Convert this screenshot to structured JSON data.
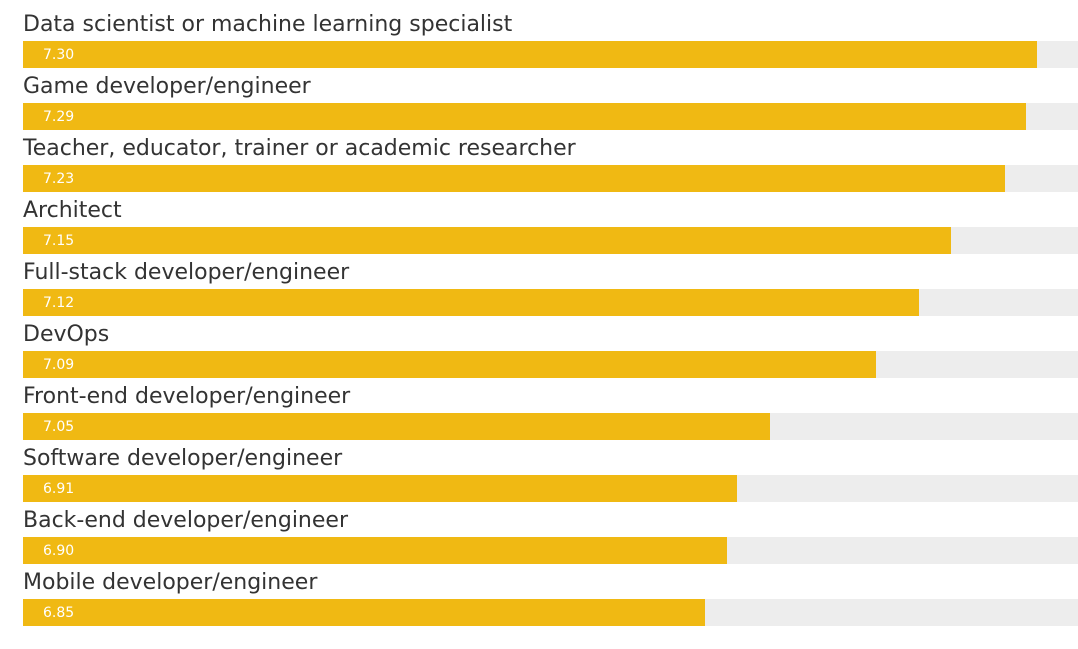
{
  "chart_data": {
    "type": "bar",
    "orientation": "horizontal",
    "title": "",
    "xlabel": "",
    "ylabel": "",
    "categories": [
      "Data scientist or machine learning specialist",
      "Game developer/engineer",
      "Teacher, educator, trainer or academic researcher",
      "Architect",
      "Full-stack developer/engineer",
      "DevOps",
      "Front-end developer/engineer",
      "Software developer/engineer",
      "Back-end developer/engineer",
      "Mobile developer/engineer"
    ],
    "values": [
      7.3,
      7.29,
      7.23,
      7.15,
      7.12,
      7.09,
      7.05,
      6.91,
      6.9,
      6.85
    ],
    "value_labels": [
      "7.30",
      "7.29",
      "7.23",
      "7.15",
      "7.12",
      "7.09",
      "7.05",
      "6.91",
      "6.90",
      "6.85"
    ],
    "fill_fractions": [
      0.961,
      0.951,
      0.931,
      0.88,
      0.849,
      0.809,
      0.708,
      0.677,
      0.667,
      0.646
    ],
    "colors": {
      "bar": "#f0b913",
      "track": "#ededed",
      "label": "#333333",
      "value": "#ffffff"
    },
    "grid": false,
    "legend": "none"
  }
}
